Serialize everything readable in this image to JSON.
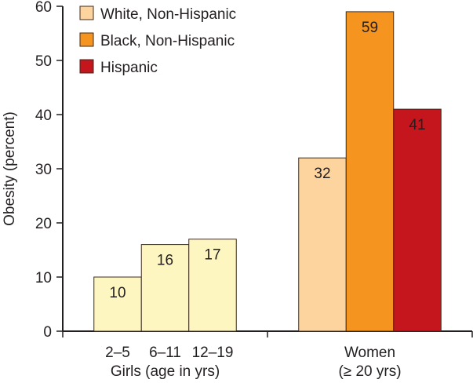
{
  "chart_data": {
    "type": "bar",
    "title": "",
    "ylabel": "Obesity (percent)",
    "xlabel": "",
    "ylim": [
      0,
      60
    ],
    "yticks": [
      0,
      10,
      20,
      30,
      40,
      50,
      60
    ],
    "grid": false,
    "legend_position": "top-left",
    "legend": [
      {
        "name": "White, Non-Hispanic",
        "color": "#FDD39E"
      },
      {
        "name": "Black, Non-Hispanic",
        "color": "#F5951F"
      },
      {
        "name": "Hispanic",
        "color": "#C4161C"
      }
    ],
    "groups": [
      {
        "label": "Girls (age in yrs)",
        "label_lines": [
          "Girls (age in yrs)"
        ],
        "bars": [
          {
            "category": "2–5",
            "value": 10,
            "color": "#FEF6C0"
          },
          {
            "category": "6–11",
            "value": 16,
            "color": "#FEF6C0"
          },
          {
            "category": "12–19",
            "value": 17,
            "color": "#FEF6C0"
          }
        ]
      },
      {
        "label": "Women (≥ 20 yrs)",
        "label_lines": [
          "Women",
          "(≥ 20 yrs)"
        ],
        "bars": [
          {
            "category": "White, Non-Hispanic",
            "value": 32,
            "color": "#FDD39E"
          },
          {
            "category": "Black, Non-Hispanic",
            "value": 59,
            "color": "#F5951F"
          },
          {
            "category": "Hispanic",
            "value": 41,
            "color": "#C4161C"
          }
        ]
      }
    ]
  }
}
